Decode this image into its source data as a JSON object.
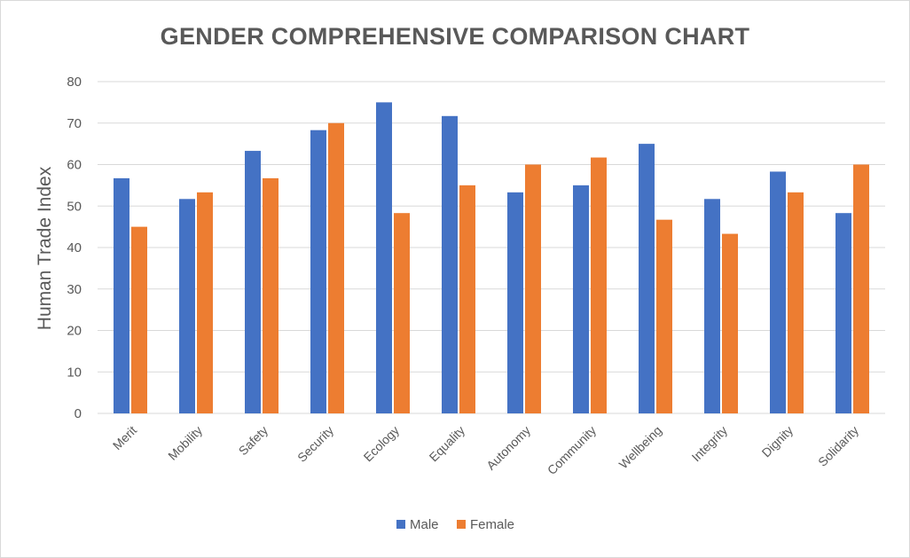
{
  "chart_data": {
    "type": "bar",
    "title": "GENDER COMPREHENSIVE COMPARISON CHART",
    "xlabel": "",
    "ylabel": "Human Trade Index",
    "ylim": [
      0,
      80
    ],
    "yticks": [
      "0",
      "10",
      "20",
      "30",
      "40",
      "50",
      "60",
      "70",
      "80"
    ],
    "grid": true,
    "legend_position": "bottom",
    "categories": [
      "Merit",
      "Mobility",
      "Safety",
      "Security",
      "Ecology",
      "Equality",
      "Autonomy",
      "Community",
      "Wellbeing",
      "Integrity",
      "Dignity",
      "Solidarity"
    ],
    "series": [
      {
        "name": "Male",
        "color": "#4472c4",
        "values": [
          56.7,
          51.7,
          63.3,
          68.3,
          75.0,
          71.7,
          53.3,
          55.0,
          65.0,
          51.7,
          58.3,
          48.3
        ]
      },
      {
        "name": "Female",
        "color": "#ed7d31",
        "values": [
          45.0,
          53.3,
          56.7,
          70.0,
          48.3,
          55.0,
          60.0,
          61.7,
          46.7,
          43.3,
          53.3,
          60.0
        ]
      }
    ]
  }
}
